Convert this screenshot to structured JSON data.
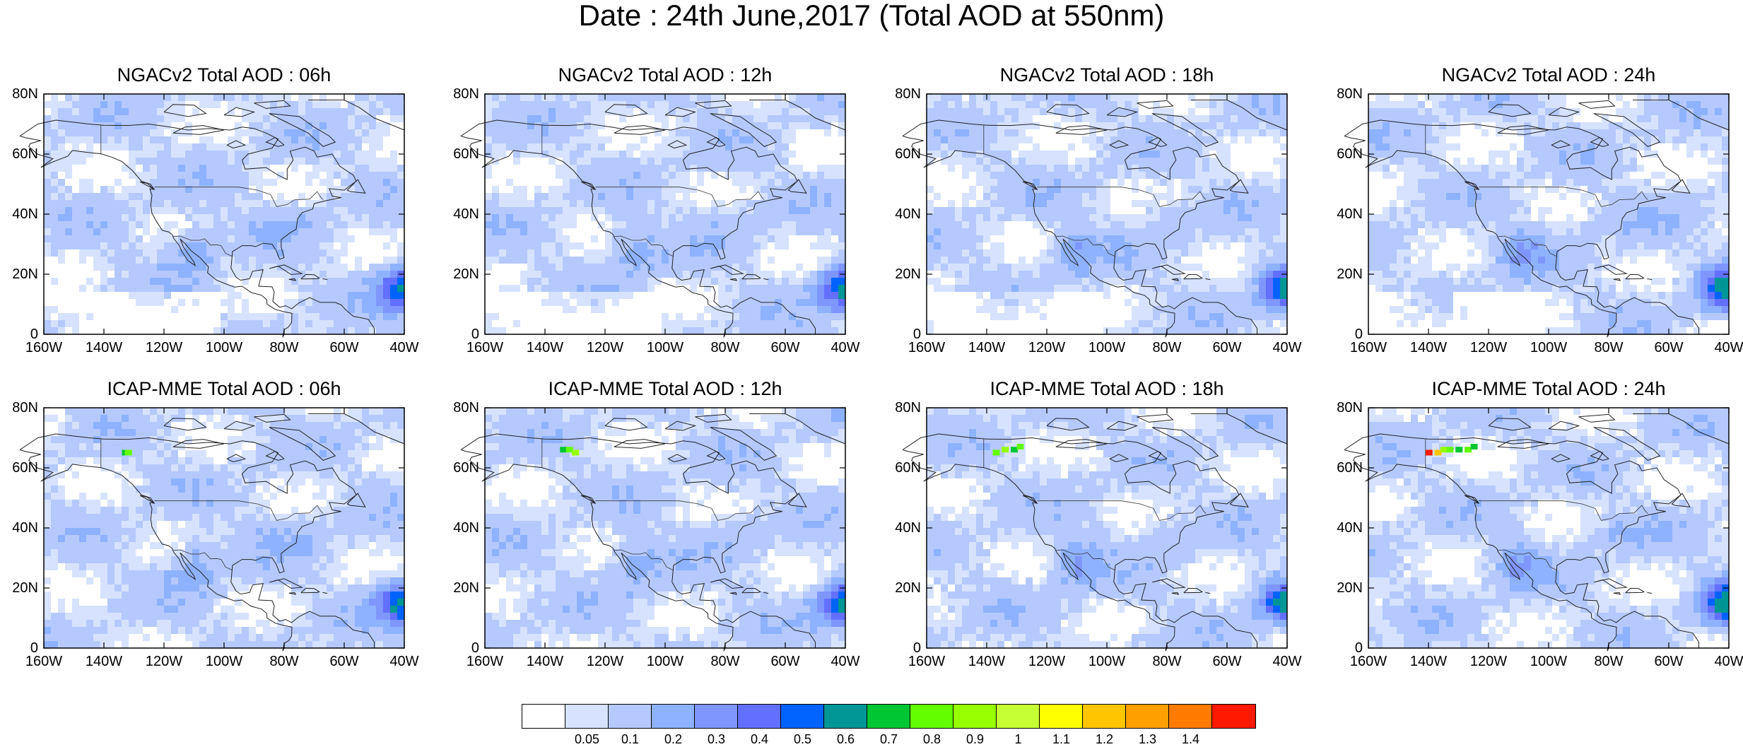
{
  "title": "Date : 24th June,2017 (Total AOD at 550nm)",
  "panels": [
    {
      "title": "NGACv2 Total AOD : 06h"
    },
    {
      "title": "NGACv2 Total AOD : 12h"
    },
    {
      "title": "NGACv2 Total AOD : 18h"
    },
    {
      "title": "NGACv2 Total AOD : 24h"
    },
    {
      "title": "ICAP-MME Total AOD : 06h"
    },
    {
      "title": "ICAP-MME Total AOD : 12h"
    },
    {
      "title": "ICAP-MME Total AOD : 18h"
    },
    {
      "title": "ICAP-MME Total AOD : 24h"
    }
  ],
  "axes": {
    "x_ticks": [
      "160W",
      "140W",
      "120W",
      "100W",
      "80W",
      "60W",
      "40W"
    ],
    "y_ticks": [
      "80N",
      "60N",
      "40N",
      "20N",
      "0"
    ],
    "lon_range": [
      -160,
      -40
    ],
    "lat_range": [
      0,
      80
    ]
  },
  "colorbar": {
    "colors": [
      "#ffffff",
      "#d6e2ff",
      "#b5c9ff",
      "#8eb2ff",
      "#7f96ff",
      "#6370ff",
      "#0063ff",
      "#009696",
      "#00c633",
      "#63ff00",
      "#96ff00",
      "#c6ff33",
      "#ffff00",
      "#ffc600",
      "#ffa000",
      "#ff7c00",
      "#ff1900"
    ],
    "labels": [
      "0.05",
      "0.1",
      "0.2",
      "0.3",
      "0.4",
      "0.5",
      "0.6",
      "0.7",
      "0.8",
      "0.9",
      "1",
      "1.1",
      "1.2",
      "1.3",
      "1.4"
    ]
  }
}
